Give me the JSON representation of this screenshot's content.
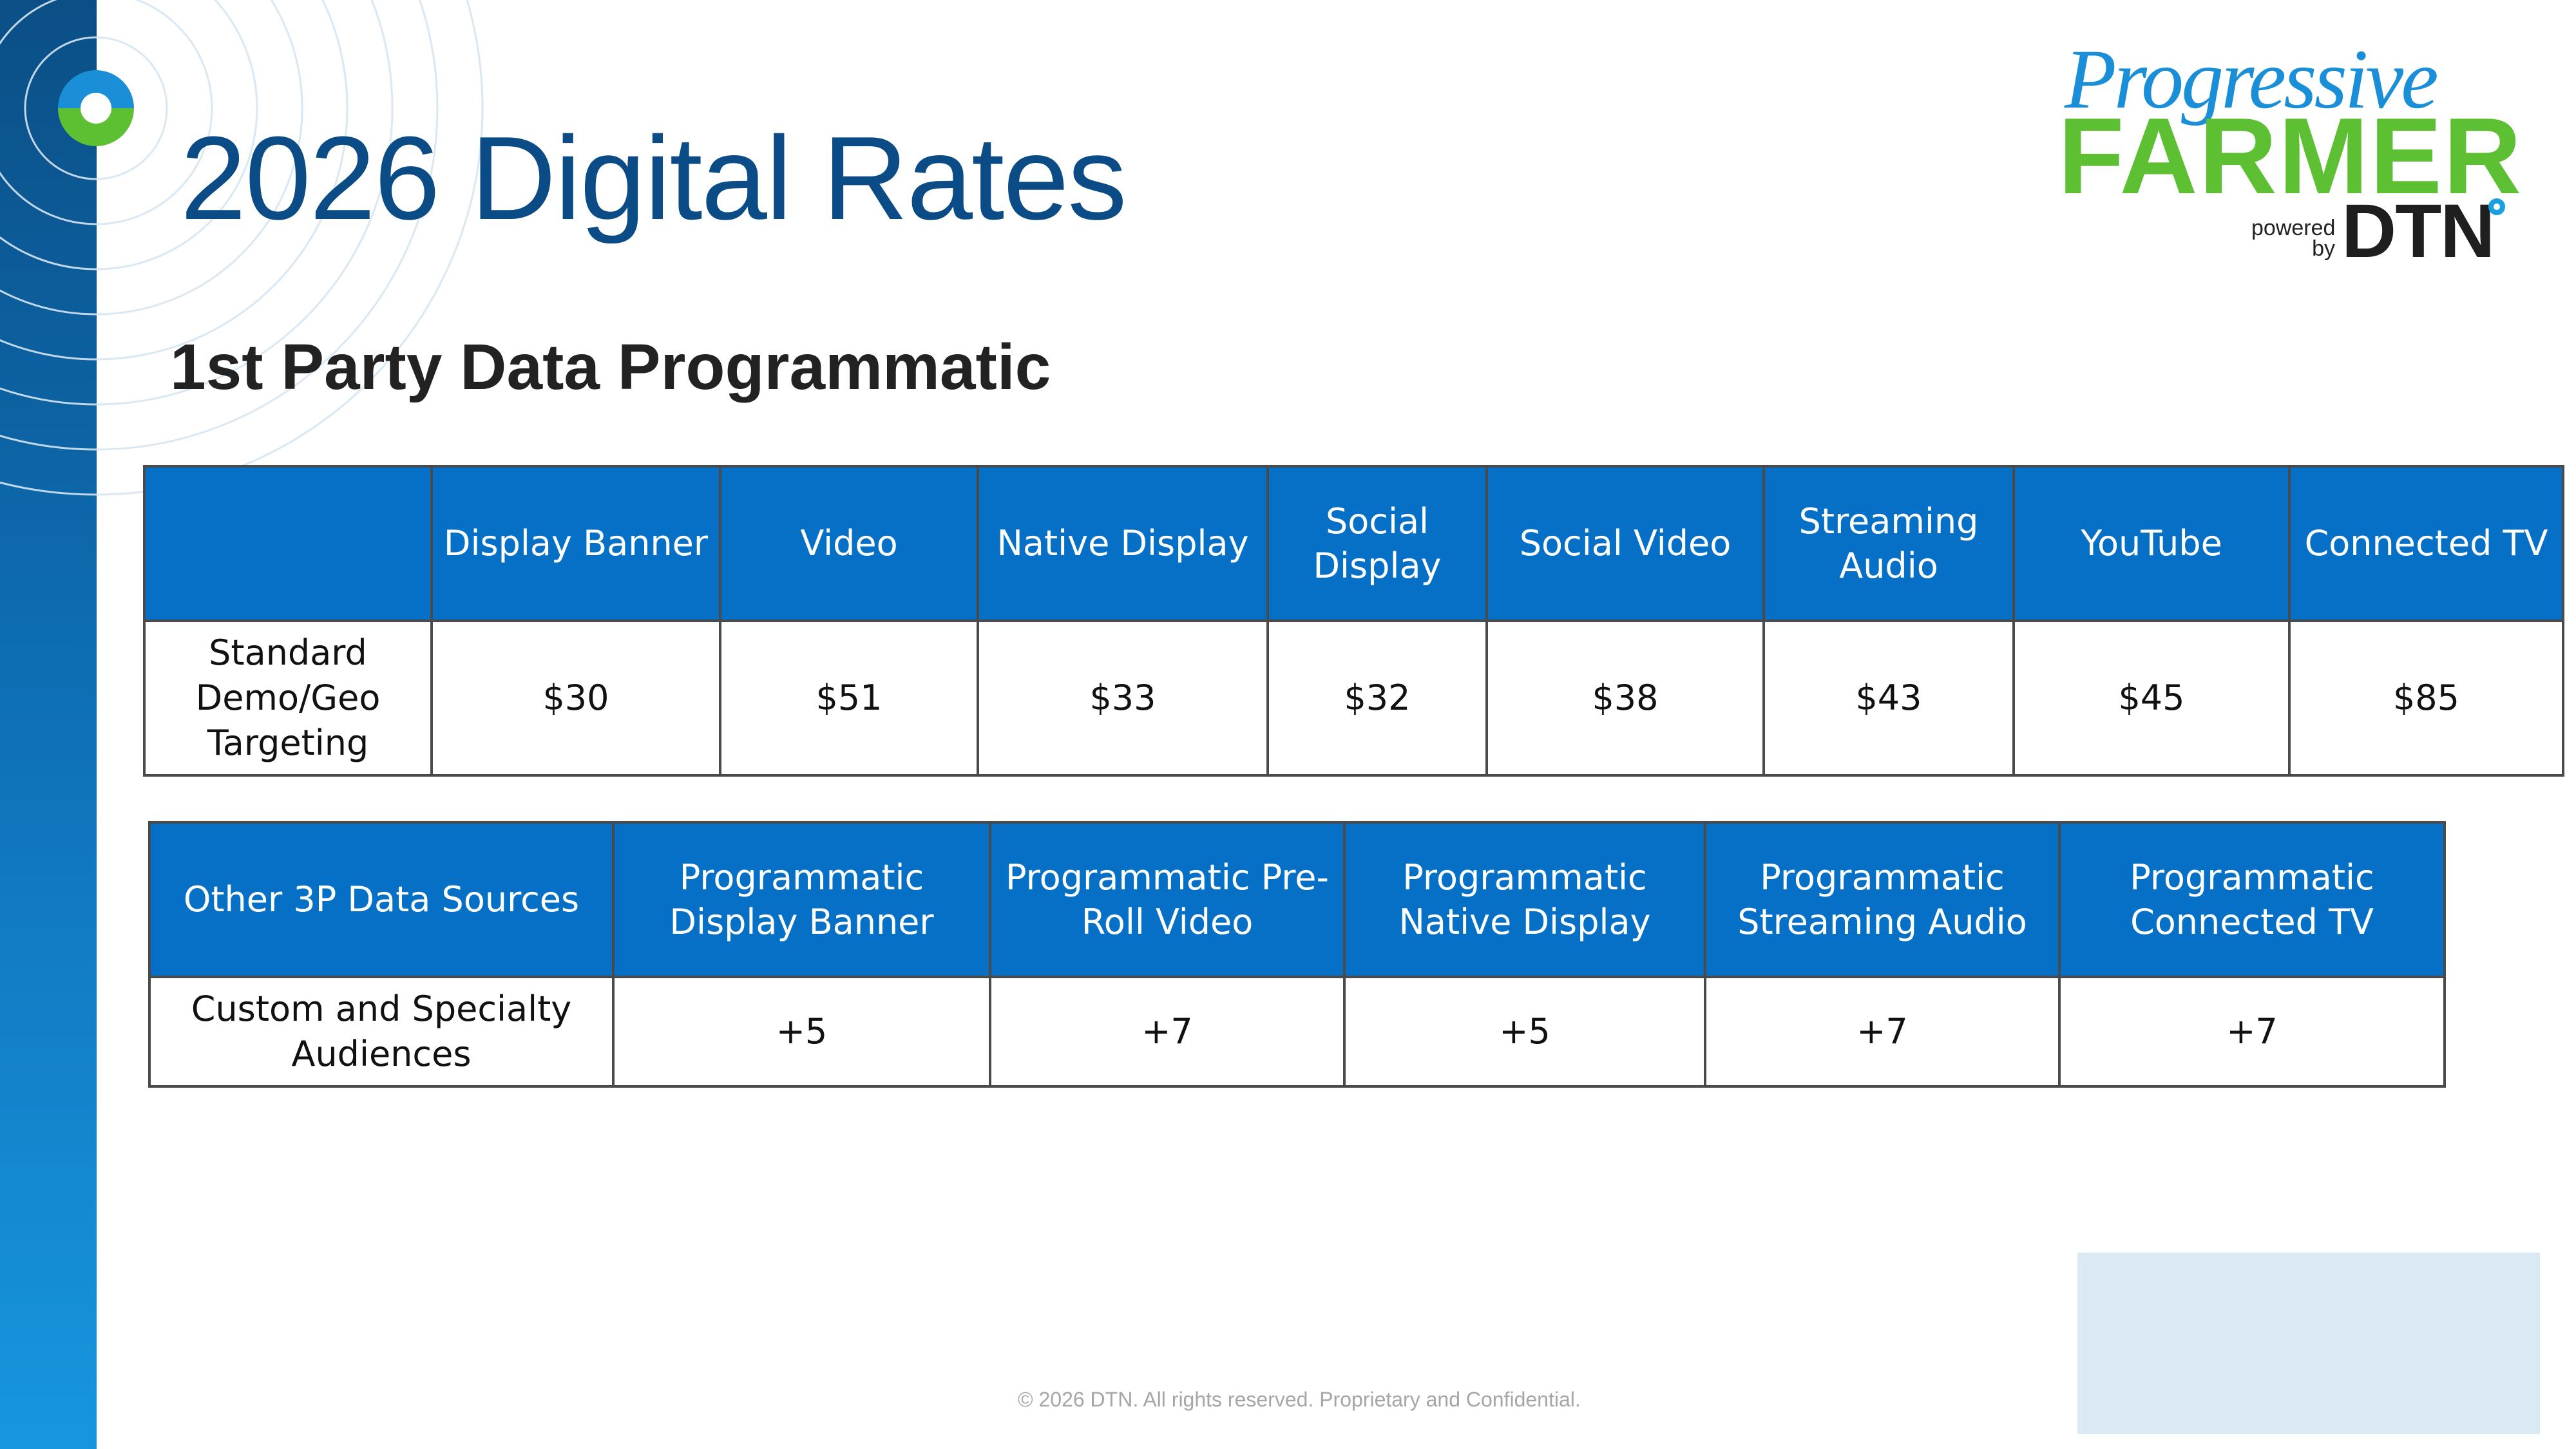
{
  "slide": {
    "title": "2026 Digital Rates",
    "subtitle": "1st Party Data Programmatic",
    "footer": "© 2026 DTN. All rights reserved. Proprietary and Confidential."
  },
  "logo": {
    "line1": "Progressive",
    "line2": "FARMER",
    "powered": "powered",
    "by": "by",
    "brand": "DTN"
  },
  "table1": {
    "headers": [
      "",
      "Display Banner",
      "Video",
      "Native Display",
      "Social Display",
      "Social Video",
      "Streaming Audio",
      "YouTube",
      "Connected TV"
    ],
    "row_label": "Standard Demo/Geo Targeting",
    "values": [
      "$30",
      "$51",
      "$33",
      "$32",
      "$38",
      "$43",
      "$45",
      "$85"
    ]
  },
  "table2": {
    "headers": [
      "Other 3P Data Sources",
      "Programmatic Display Banner",
      "Programmatic Pre-Roll Video",
      "Programmatic Native Display",
      "Programmatic Streaming Audio",
      "Programmatic Connected TV"
    ],
    "row_label": "Custom and Specialty Audiences",
    "values": [
      "+5",
      "+7",
      "+5",
      "+7",
      "+7"
    ]
  },
  "colors": {
    "header_blue": "#0570c6",
    "title_navy": "#0b4b86",
    "brand_green": "#5cc032",
    "brand_blue": "#1a8fd8"
  }
}
